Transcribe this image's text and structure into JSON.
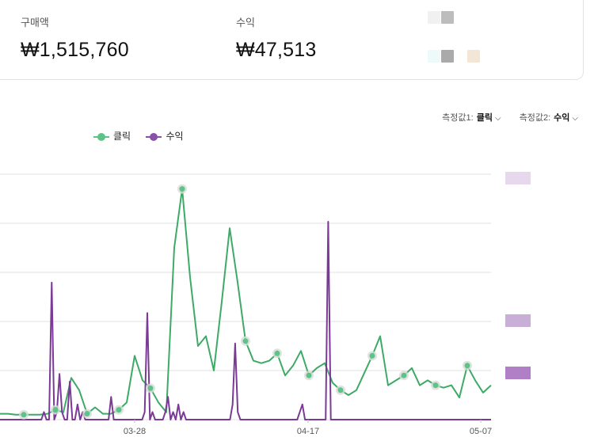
{
  "summary": {
    "purchase_label": "구매액",
    "purchase_value": "₩1,515,760",
    "revenue_label": "수익",
    "revenue_value": "₩47,513"
  },
  "measures": {
    "m1_label": "측정값1:",
    "m1_value": "클릭",
    "m2_label": "측정값2:",
    "m2_value": "수익"
  },
  "colors": {
    "clicks": "#3daa66",
    "revenue": "#7a3a96",
    "highlight_clicks": "#5cc487",
    "highlight_revenue": "#8a4fab"
  },
  "chart_data": {
    "type": "line",
    "x_tick_labels": [
      "03-28",
      "04-17",
      "05-07"
    ],
    "series": [
      {
        "name": "클릭",
        "values": [
          0.12,
          0.12,
          0.1,
          0.1,
          0.1,
          0.1,
          0.12,
          0.2,
          0.15,
          0.85,
          0.6,
          0.12,
          0.25,
          0.12,
          0.12,
          0.2,
          0.35,
          1.3,
          0.8,
          0.64,
          0.35,
          0.15,
          3.5,
          4.7,
          2.9,
          1.5,
          1.7,
          1.0,
          2.4,
          3.9,
          2.8,
          1.6,
          1.2,
          1.15,
          1.2,
          1.35,
          0.9,
          1.1,
          1.4,
          0.9,
          1.05,
          1.15,
          0.75,
          0.6,
          0.5,
          0.6,
          0.95,
          1.3,
          1.7,
          0.7,
          0.8,
          0.9,
          1.05,
          0.7,
          0.8,
          0.7,
          0.65,
          0.7,
          0.45,
          1.1,
          0.8,
          0.55,
          0.7
        ],
        "highlight_indices": [
          3,
          7,
          11,
          15,
          19,
          23,
          31,
          35,
          39,
          43,
          47,
          51,
          55,
          59
        ]
      },
      {
        "name": "수익",
        "values": [
          0,
          0,
          0,
          0,
          0,
          0,
          0,
          0,
          0,
          0,
          0,
          0,
          0,
          0,
          0,
          0,
          0,
          0.05,
          0,
          0,
          0.9,
          0,
          0.05,
          0.3,
          0.05,
          0,
          0,
          0.25,
          0,
          0,
          0.1,
          0,
          0.05,
          0,
          0,
          0,
          0,
          0,
          0,
          0,
          0,
          0,
          0,
          0.15,
          0,
          0,
          0,
          0,
          0,
          0,
          0,
          0,
          0,
          0,
          0,
          0,
          0.05,
          0.7,
          0,
          0.05,
          0,
          0,
          0,
          0,
          0.05,
          0.15,
          0,
          0.05,
          0,
          0.1,
          0,
          0.05,
          0,
          0,
          0,
          0,
          0,
          0,
          0,
          0,
          0,
          0,
          0,
          0,
          0,
          0,
          0,
          0,
          0,
          0,
          0.1,
          0.5,
          0.05,
          0,
          0,
          0,
          0,
          0,
          0,
          0,
          0,
          0,
          0,
          0,
          0,
          0,
          0,
          0,
          0,
          0,
          0,
          0,
          0,
          0,
          0,
          0,
          0.05,
          0.1,
          0,
          0,
          0,
          0,
          0,
          0,
          0,
          0,
          0,
          1.3,
          0,
          0,
          0,
          0,
          0,
          0,
          0,
          0,
          0,
          0,
          0,
          0,
          0,
          0,
          0,
          0,
          0,
          0,
          0,
          0,
          0,
          0,
          0,
          0,
          0,
          0,
          0,
          0,
          0,
          0,
          0,
          0,
          0,
          0,
          0,
          0,
          0,
          0,
          0,
          0,
          0,
          0,
          0,
          0,
          0,
          0,
          0,
          0,
          0,
          0,
          0,
          0,
          0,
          0,
          0,
          0,
          0,
          0,
          0,
          0,
          0,
          0,
          0
        ],
        "highlight_indices": []
      }
    ],
    "grid": true
  }
}
